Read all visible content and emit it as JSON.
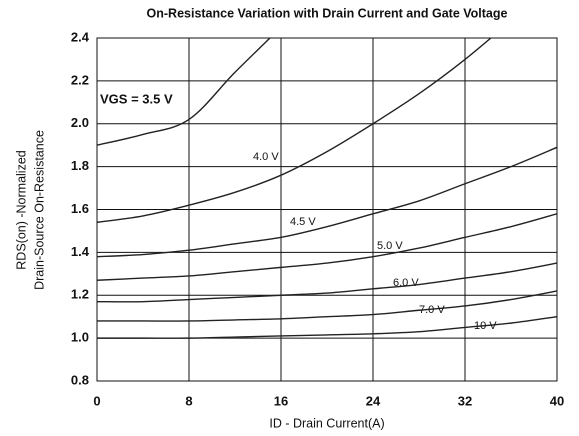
{
  "chart_data": {
    "type": "line",
    "title": "On-Resistance Variation with Drain Current and Gate Voltage",
    "x_label": "ID - Drain Current(A)",
    "y_label": [
      "RDS(on) -Normalized",
      "Drain-Source On-Resistance"
    ],
    "x": [
      0,
      4,
      8,
      12,
      16,
      20,
      24,
      28,
      32,
      36,
      40
    ],
    "xlim": [
      0,
      40
    ],
    "xticks": [
      0,
      8,
      16,
      24,
      32,
      40
    ],
    "ylim": [
      0.8,
      2.4
    ],
    "yticks": [
      0.8,
      {
        "value": 1,
        "label": "1.0"
      },
      1.2,
      1.4,
      1.6,
      1.8,
      {
        "value": 2,
        "label": "2.0"
      },
      2.2,
      2.4
    ],
    "grid": true,
    "series": [
      {
        "name": "VGS = 3.5 V",
        "color": "#222222",
        "values": [
          1.9,
          1.95,
          2.02,
          2.24,
          2.45,
          null,
          null,
          null,
          null,
          null,
          null
        ]
      },
      {
        "name": "4.0 V",
        "color": "#222222",
        "values": [
          1.54,
          1.57,
          1.62,
          1.68,
          1.76,
          1.87,
          2.0,
          2.14,
          2.3,
          2.48,
          null
        ]
      },
      {
        "name": "4.5 V",
        "color": "#222222",
        "values": [
          1.38,
          1.39,
          1.41,
          1.44,
          1.47,
          1.52,
          1.58,
          1.64,
          1.72,
          1.8,
          1.89
        ]
      },
      {
        "name": "5.0 V",
        "color": "#222222",
        "values": [
          1.27,
          1.28,
          1.29,
          1.31,
          1.33,
          1.35,
          1.38,
          1.42,
          1.47,
          1.52,
          1.58
        ]
      },
      {
        "name": "6.0 V",
        "color": "#222222",
        "values": [
          1.17,
          1.17,
          1.18,
          1.19,
          1.2,
          1.21,
          1.23,
          1.25,
          1.28,
          1.31,
          1.35
        ]
      },
      {
        "name": "7.0 V",
        "color": "#222222",
        "values": [
          1.08,
          1.08,
          1.08,
          1.085,
          1.09,
          1.1,
          1.11,
          1.13,
          1.15,
          1.18,
          1.22
        ]
      },
      {
        "name": "10 V",
        "color": "#222222",
        "values": [
          1.0,
          1.0,
          1.0,
          1.005,
          1.01,
          1.015,
          1.02,
          1.03,
          1.05,
          1.07,
          1.1
        ]
      }
    ]
  }
}
